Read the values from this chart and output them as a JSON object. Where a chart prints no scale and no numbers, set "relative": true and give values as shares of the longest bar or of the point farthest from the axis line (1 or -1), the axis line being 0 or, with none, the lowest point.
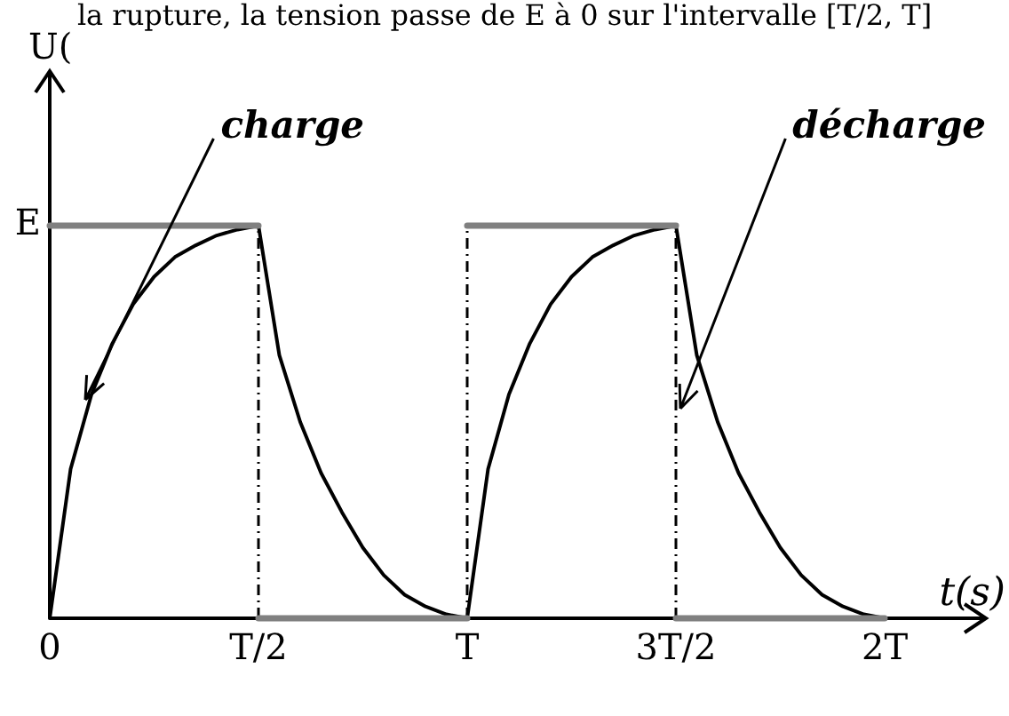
{
  "chart_data": {
    "type": "line",
    "title": "la rupture, la tension passe de E à 0 sur l'intervalle [T/2, T]",
    "xlabel": "t(s)",
    "ylabel": "U(",
    "relative": true,
    "categories": [
      "0",
      null,
      null,
      null,
      null,
      null,
      null,
      null,
      null,
      null,
      "T/2",
      null,
      null,
      null,
      null,
      null,
      null,
      null,
      null,
      null,
      "T",
      null,
      null,
      null,
      null,
      null,
      null,
      null,
      null,
      null,
      "3T/2",
      null,
      null,
      null,
      null,
      null,
      null,
      null,
      null,
      null,
      "2T"
    ],
    "grid": false,
    "legend": false,
    "marker": "none",
    "annotations": [
      "charge",
      "décharge",
      "E"
    ],
    "ref_lines": [
      {
        "axis": "x",
        "value": "T/2",
        "color": "#000000",
        "line_style": "dashed"
      },
      {
        "axis": "x",
        "value": "T",
        "color": "#000000",
        "line_style": "dashed"
      },
      {
        "axis": "x",
        "value": "3T/2",
        "color": "#000000",
        "line_style": "dashed"
      }
    ],
    "series": [
      {
        "color": "#808080",
        "line_style": "solid",
        "values": [
          1,
          1,
          1,
          1,
          1,
          1,
          1,
          1,
          1,
          1,
          1,
          null,
          null,
          null,
          null,
          null,
          null,
          null,
          null,
          null,
          1,
          1,
          1,
          1,
          1,
          1,
          1,
          1,
          1,
          1,
          1,
          null,
          null,
          null,
          null,
          null,
          null,
          null,
          null,
          null,
          null
        ]
      },
      {
        "color": "#808080",
        "line_style": "solid",
        "values": [
          null,
          null,
          null,
          null,
          null,
          null,
          null,
          null,
          null,
          null,
          0,
          0,
          0,
          0,
          0,
          0,
          0,
          0,
          0,
          0,
          0,
          null,
          null,
          null,
          null,
          null,
          null,
          null,
          null,
          null,
          0,
          0,
          0,
          0,
          0,
          0,
          0,
          0,
          0,
          0,
          0
        ]
      },
      {
        "color": "#000000",
        "line_style": "solid",
        "values": [
          0,
          0.38,
          0.57,
          0.7,
          0.8,
          0.87,
          0.92,
          0.95,
          0.975,
          0.99,
          1,
          0.67,
          0.5,
          0.37,
          0.27,
          0.18,
          0.11,
          0.06,
          0.03,
          0.01,
          0,
          0.38,
          0.57,
          0.7,
          0.8,
          0.87,
          0.92,
          0.95,
          0.975,
          0.99,
          1,
          0.67,
          0.5,
          0.37,
          0.27,
          0.18,
          0.11,
          0.06,
          0.03,
          0.01,
          0
        ]
      }
    ]
  }
}
